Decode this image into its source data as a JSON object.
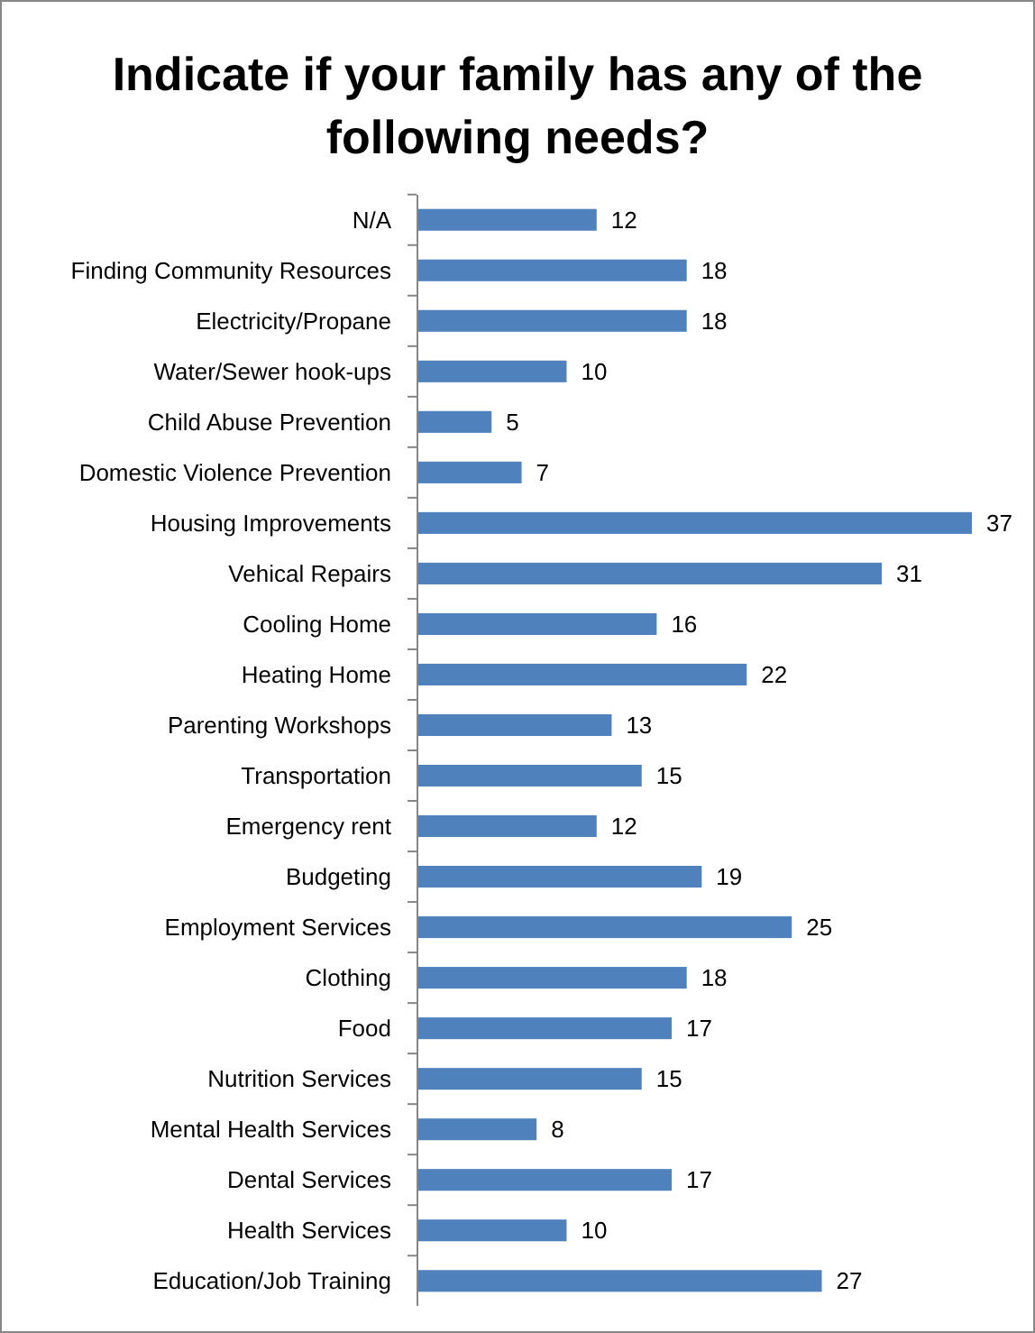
{
  "chart_data": {
    "type": "bar",
    "orientation": "horizontal",
    "title": "Indicate if your family has any of the following needs?",
    "categories": [
      "N/A",
      "Finding Community Resources",
      "Electricity/Propane",
      "Water/Sewer hook-ups",
      "Child Abuse Prevention",
      "Domestic Violence Prevention",
      "Housing Improvements",
      "Vehical Repairs",
      "Cooling Home",
      "Heating Home",
      "Parenting Workshops",
      "Transportation",
      "Emergency rent",
      "Budgeting",
      "Employment Services",
      "Clothing",
      "Food",
      "Nutrition Services",
      "Mental Health Services",
      "Dental Services",
      "Health Services",
      "Education/Job Training"
    ],
    "values": [
      12,
      18,
      18,
      10,
      5,
      7,
      37,
      31,
      16,
      22,
      13,
      15,
      12,
      19,
      25,
      18,
      17,
      15,
      8,
      17,
      10,
      27
    ],
    "color": "#4f81bd",
    "data_labels": true
  }
}
